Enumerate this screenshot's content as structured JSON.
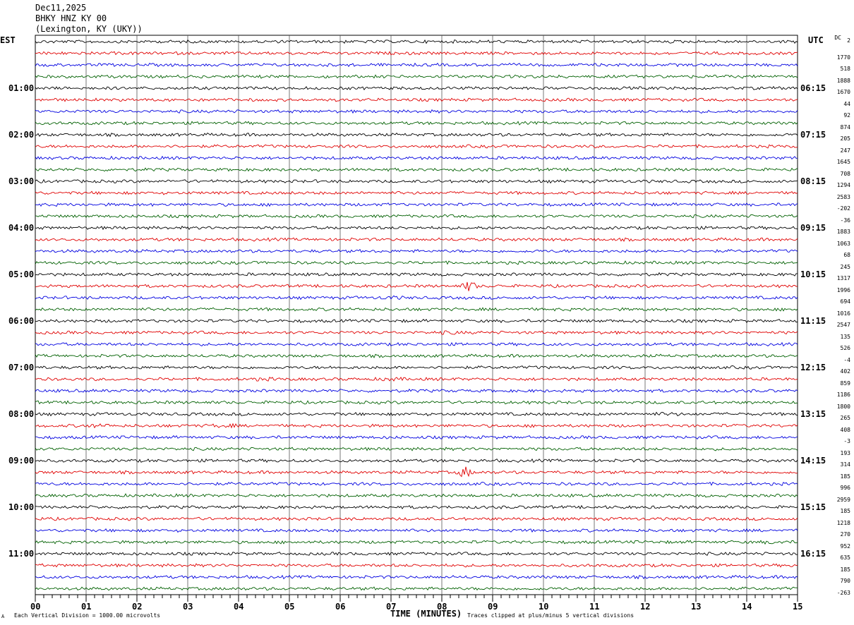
{
  "header": {
    "date": "Dec11,2025",
    "station": "BHKY HNZ KY 00",
    "location": "(Lexington, KY (UKY))"
  },
  "left_tz": "EST",
  "right_tz": "UTC",
  "dc_label": "DC",
  "footer": {
    "scale_note": "Each Vertical Division = 1000.00 microvolts",
    "clip_note": "Traces clipped at plus/minus 5 vertical divisions",
    "corner_mark": "A"
  },
  "chart_data": {
    "type": "line",
    "title": "BHKY HNZ KY 00",
    "xlabel": "TIME (MINUTES)",
    "ylabel": "",
    "xlim": [
      0,
      15
    ],
    "x_ticks": [
      "00",
      "01",
      "02",
      "03",
      "04",
      "05",
      "06",
      "07",
      "08",
      "09",
      "10",
      "11",
      "12",
      "13",
      "14",
      "15"
    ],
    "rows_per_hour": 4,
    "trace_colors": [
      "#000000",
      "#e00000",
      "#0000e0",
      "#006000"
    ],
    "est_hour_labels": [
      "01:00",
      "02:00",
      "03:00",
      "04:00",
      "05:00",
      "06:00",
      "07:00",
      "08:00",
      "09:00",
      "10:00",
      "11:00"
    ],
    "utc_hour_labels": [
      "06:15",
      "07:15",
      "08:15",
      "09:15",
      "10:15",
      "11:15",
      "12:15",
      "13:15",
      "14:15",
      "15:15",
      "16:15"
    ],
    "dc_offsets": [
      "2",
      "1770",
      "518",
      "1888",
      "1670",
      "44",
      "92",
      "874",
      "205",
      "247",
      "1645",
      "708",
      "1294",
      "2583",
      "-202",
      "-36",
      "1883",
      "1063",
      "68",
      "245",
      "1317",
      "1996",
      "694",
      "1016",
      "2547",
      "135",
      "526",
      "-4",
      "402",
      "859",
      "1186",
      "1800",
      "265",
      "408",
      "-3",
      "193",
      "314",
      "185",
      "996",
      "2959",
      "185",
      "1218",
      "270",
      "952",
      "635",
      "185",
      "790",
      "-263"
    ],
    "events": [
      {
        "row": 21,
        "minute": 8.55,
        "amplitude": "large"
      },
      {
        "row": 37,
        "minute": 8.45,
        "amplitude": "large"
      },
      {
        "row": 22,
        "minute": 7.0,
        "amplitude": "small"
      },
      {
        "row": 25,
        "minute": 8.1,
        "amplitude": "small"
      },
      {
        "row": 29,
        "minute": 4.5,
        "amplitude": "small"
      },
      {
        "row": 29,
        "minute": 7.0,
        "amplitude": "small"
      },
      {
        "row": 33,
        "minute": 1.2,
        "amplitude": "small"
      },
      {
        "row": 33,
        "minute": 3.7,
        "amplitude": "small"
      },
      {
        "row": 32,
        "minute": 12.4,
        "amplitude": "small"
      },
      {
        "row": 43,
        "minute": 14.5,
        "amplitude": "small"
      }
    ]
  }
}
